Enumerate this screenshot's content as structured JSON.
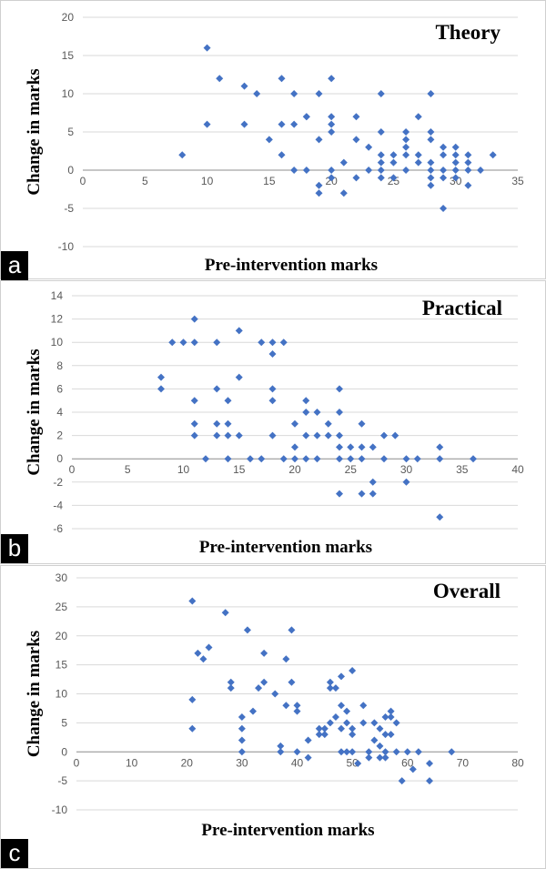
{
  "colors": {
    "marker": "#4472C4",
    "grid": "#d9d9d9",
    "axis": "#8c8c8c"
  },
  "panels": [
    {
      "label": "a"
    },
    {
      "label": "b"
    },
    {
      "label": "c"
    }
  ],
  "chart_data": [
    {
      "type": "scatter",
      "title": "Theory",
      "xlabel": "Pre-intervention marks",
      "ylabel": "Change in marks",
      "xlim": [
        0,
        35
      ],
      "ylim": [
        -10,
        20
      ],
      "xticks": [
        0,
        5,
        10,
        15,
        20,
        25,
        30,
        35
      ],
      "yticks": [
        -10,
        -5,
        0,
        5,
        10,
        15,
        20
      ],
      "grid": true,
      "x": [
        8,
        10,
        10,
        11,
        13,
        13,
        14,
        15,
        16,
        16,
        16,
        17,
        17,
        17,
        18,
        18,
        18,
        19,
        19,
        19,
        19,
        20,
        20,
        20,
        20,
        20,
        20,
        21,
        21,
        22,
        22,
        22,
        23,
        23,
        24,
        24,
        24,
        24,
        24,
        24,
        25,
        25,
        25,
        26,
        26,
        26,
        26,
        26,
        27,
        27,
        27,
        28,
        28,
        28,
        28,
        28,
        28,
        28,
        29,
        29,
        29,
        29,
        29,
        30,
        30,
        30,
        30,
        30,
        31,
        31,
        31,
        31,
        32,
        33
      ],
      "y": [
        2,
        16,
        6,
        12,
        11,
        6,
        10,
        4,
        12,
        6,
        2,
        10,
        6,
        0,
        7,
        0,
        7,
        10,
        4,
        -2,
        -3,
        12,
        7,
        6,
        5,
        0,
        -1,
        -3,
        1,
        7,
        4,
        -1,
        3,
        0,
        10,
        5,
        2,
        1,
        0,
        -1,
        2,
        1,
        -1,
        5,
        4,
        3,
        2,
        0,
        7,
        2,
        1,
        10,
        5,
        4,
        1,
        0,
        -1,
        -2,
        3,
        2,
        0,
        -1,
        -5,
        3,
        2,
        1,
        0,
        -1,
        2,
        1,
        0,
        -2,
        0,
        2
      ]
    },
    {
      "type": "scatter",
      "title": "Practical",
      "xlabel": "Pre-intervention marks",
      "ylabel": "Change in marks",
      "xlim": [
        0,
        40
      ],
      "ylim": [
        -6,
        14
      ],
      "xticks": [
        0,
        5,
        10,
        15,
        20,
        25,
        30,
        35,
        40
      ],
      "yticks": [
        -6,
        -4,
        -2,
        0,
        2,
        4,
        6,
        8,
        10,
        12,
        14
      ],
      "grid": true,
      "x": [
        8,
        8,
        9,
        10,
        11,
        11,
        11,
        11,
        11,
        12,
        13,
        13,
        13,
        13,
        14,
        14,
        14,
        14,
        15,
        15,
        15,
        16,
        17,
        17,
        18,
        18,
        18,
        18,
        18,
        19,
        19,
        20,
        20,
        20,
        21,
        21,
        21,
        21,
        22,
        22,
        22,
        23,
        23,
        24,
        24,
        24,
        24,
        24,
        24,
        25,
        25,
        26,
        26,
        26,
        26,
        27,
        27,
        27,
        28,
        28,
        29,
        30,
        30,
        31,
        33,
        33,
        33,
        36
      ],
      "y": [
        7,
        6,
        10,
        10,
        12,
        10,
        5,
        3,
        2,
        0,
        10,
        6,
        3,
        2,
        5,
        3,
        2,
        0,
        11,
        7,
        2,
        0,
        10,
        0,
        10,
        9,
        6,
        5,
        2,
        10,
        0,
        3,
        1,
        0,
        5,
        4,
        2,
        0,
        4,
        2,
        0,
        3,
        2,
        6,
        4,
        2,
        1,
        0,
        -3,
        1,
        0,
        3,
        1,
        0,
        -3,
        -2,
        -3,
        1,
        2,
        0,
        2,
        0,
        -2,
        0,
        1,
        0,
        -5,
        0
      ]
    },
    {
      "type": "scatter",
      "title": "Overall",
      "xlabel": "Pre-intervention marks",
      "ylabel": "Change in marks",
      "xlim": [
        0,
        80
      ],
      "ylim": [
        -10,
        30
      ],
      "xticks": [
        0,
        10,
        20,
        30,
        40,
        50,
        60,
        70,
        80
      ],
      "yticks": [
        -10,
        -5,
        0,
        5,
        10,
        15,
        20,
        25,
        30
      ],
      "grid": true,
      "x": [
        21,
        21,
        21,
        22,
        23,
        24,
        27,
        28,
        28,
        30,
        30,
        30,
        30,
        31,
        32,
        33,
        34,
        34,
        36,
        37,
        37,
        38,
        38,
        39,
        39,
        40,
        40,
        40,
        42,
        42,
        44,
        44,
        45,
        45,
        46,
        46,
        46,
        47,
        47,
        48,
        48,
        48,
        48,
        49,
        49,
        49,
        50,
        50,
        50,
        50,
        51,
        52,
        52,
        53,
        53,
        54,
        54,
        55,
        55,
        55,
        56,
        56,
        56,
        56,
        57,
        57,
        57,
        58,
        58,
        59,
        60,
        61,
        62,
        64,
        64,
        68
      ],
      "y": [
        26,
        9,
        4,
        17,
        16,
        18,
        24,
        12,
        11,
        6,
        4,
        2,
        0,
        21,
        7,
        11,
        17,
        12,
        10,
        1,
        0,
        16,
        8,
        21,
        12,
        8,
        7,
        0,
        2,
        -1,
        4,
        3,
        4,
        3,
        12,
        11,
        5,
        11,
        6,
        13,
        8,
        4,
        0,
        7,
        5,
        0,
        14,
        4,
        3,
        0,
        -2,
        8,
        5,
        0,
        -1,
        5,
        2,
        4,
        1,
        -1,
        6,
        3,
        0,
        -1,
        7,
        6,
        3,
        5,
        0,
        -5,
        0,
        -3,
        0,
        -2,
        -5,
        0
      ]
    }
  ]
}
